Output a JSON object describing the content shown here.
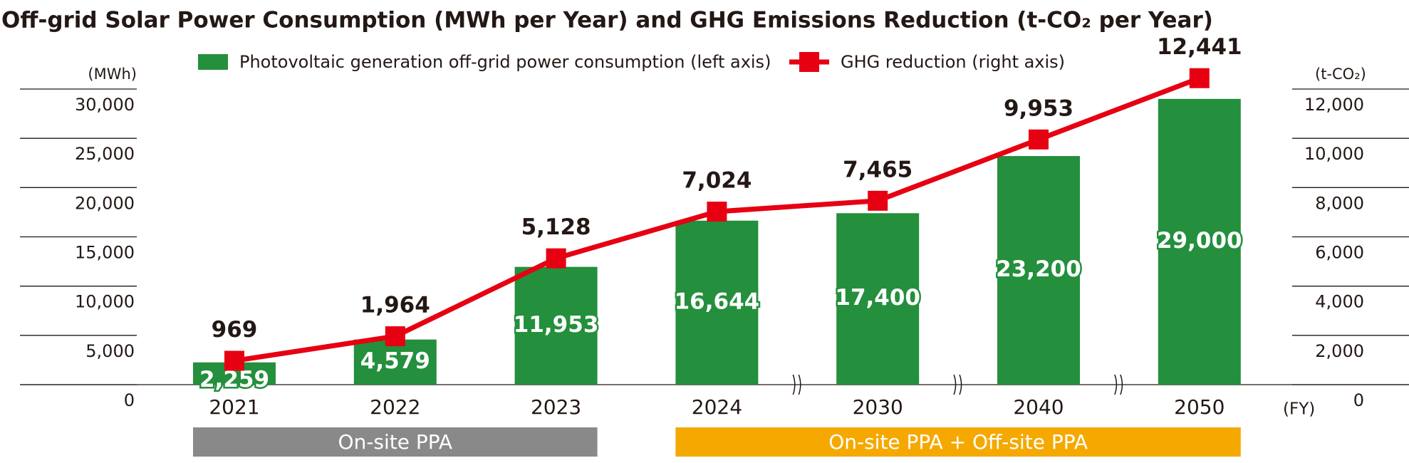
{
  "chart_data": {
    "type": "bar",
    "title": "Off-grid Solar Power Consumption (MWh per Year) and GHG Emissions Reduction (t-CO₂ per Year)",
    "y_unit": "(MWh)",
    "y2_unit": "(t-CO₂)",
    "x_unit": "(FY)",
    "categories": [
      "2021",
      "2022",
      "2023",
      "2024",
      "2030",
      "2040",
      "2050"
    ],
    "series": [
      {
        "name": "Photovoltaic generation off-grid power consumption (left axis)",
        "type": "bar",
        "color": "#248f3c",
        "values": [
          2259,
          4579,
          11953,
          16644,
          17400,
          23200,
          29000
        ],
        "value_labels": [
          "2,259",
          "4,579",
          "11,953",
          "16,644",
          "17,400",
          "23,200",
          "29,000"
        ]
      },
      {
        "name": "GHG reduction (right axis)",
        "type": "line",
        "axis": "y2",
        "color": "#e60012",
        "values": [
          969,
          1964,
          5128,
          7024,
          7465,
          9953,
          12441
        ],
        "value_labels": [
          "969",
          "1,964",
          "5,128",
          "7,024",
          "7,465",
          "9,953",
          "12,441"
        ]
      }
    ],
    "ylim": [
      0,
      30000
    ],
    "yticks": [
      0,
      {
        "value": 5000,
        "label": "5,000"
      },
      {
        "value": 10000,
        "label": "10,000"
      },
      {
        "value": 15000,
        "label": "15,000"
      },
      {
        "value": 20000,
        "label": "20,000"
      },
      {
        "value": 25000,
        "label": "25,000"
      },
      {
        "value": 30000,
        "label": "30,000"
      }
    ],
    "y2lim": [
      0,
      12000
    ],
    "y2ticks": [
      0,
      {
        "value": 2000,
        "label": "2,000"
      },
      {
        "value": 4000,
        "label": "4,000"
      },
      {
        "value": 6000,
        "label": "6,000"
      },
      {
        "value": 8000,
        "label": "8,000"
      },
      {
        "value": 10000,
        "label": "10,000"
      },
      {
        "value": 12000,
        "label": "12,000"
      }
    ],
    "grid": true,
    "legend": "top",
    "groups": [
      {
        "label": "On-site PPA",
        "color": "#898989",
        "span": [
          "2021",
          "2023"
        ]
      },
      {
        "label": "On-site PPA + Off-site PPA",
        "color": "#f5a900",
        "span": [
          "2024",
          "2050"
        ]
      }
    ]
  }
}
